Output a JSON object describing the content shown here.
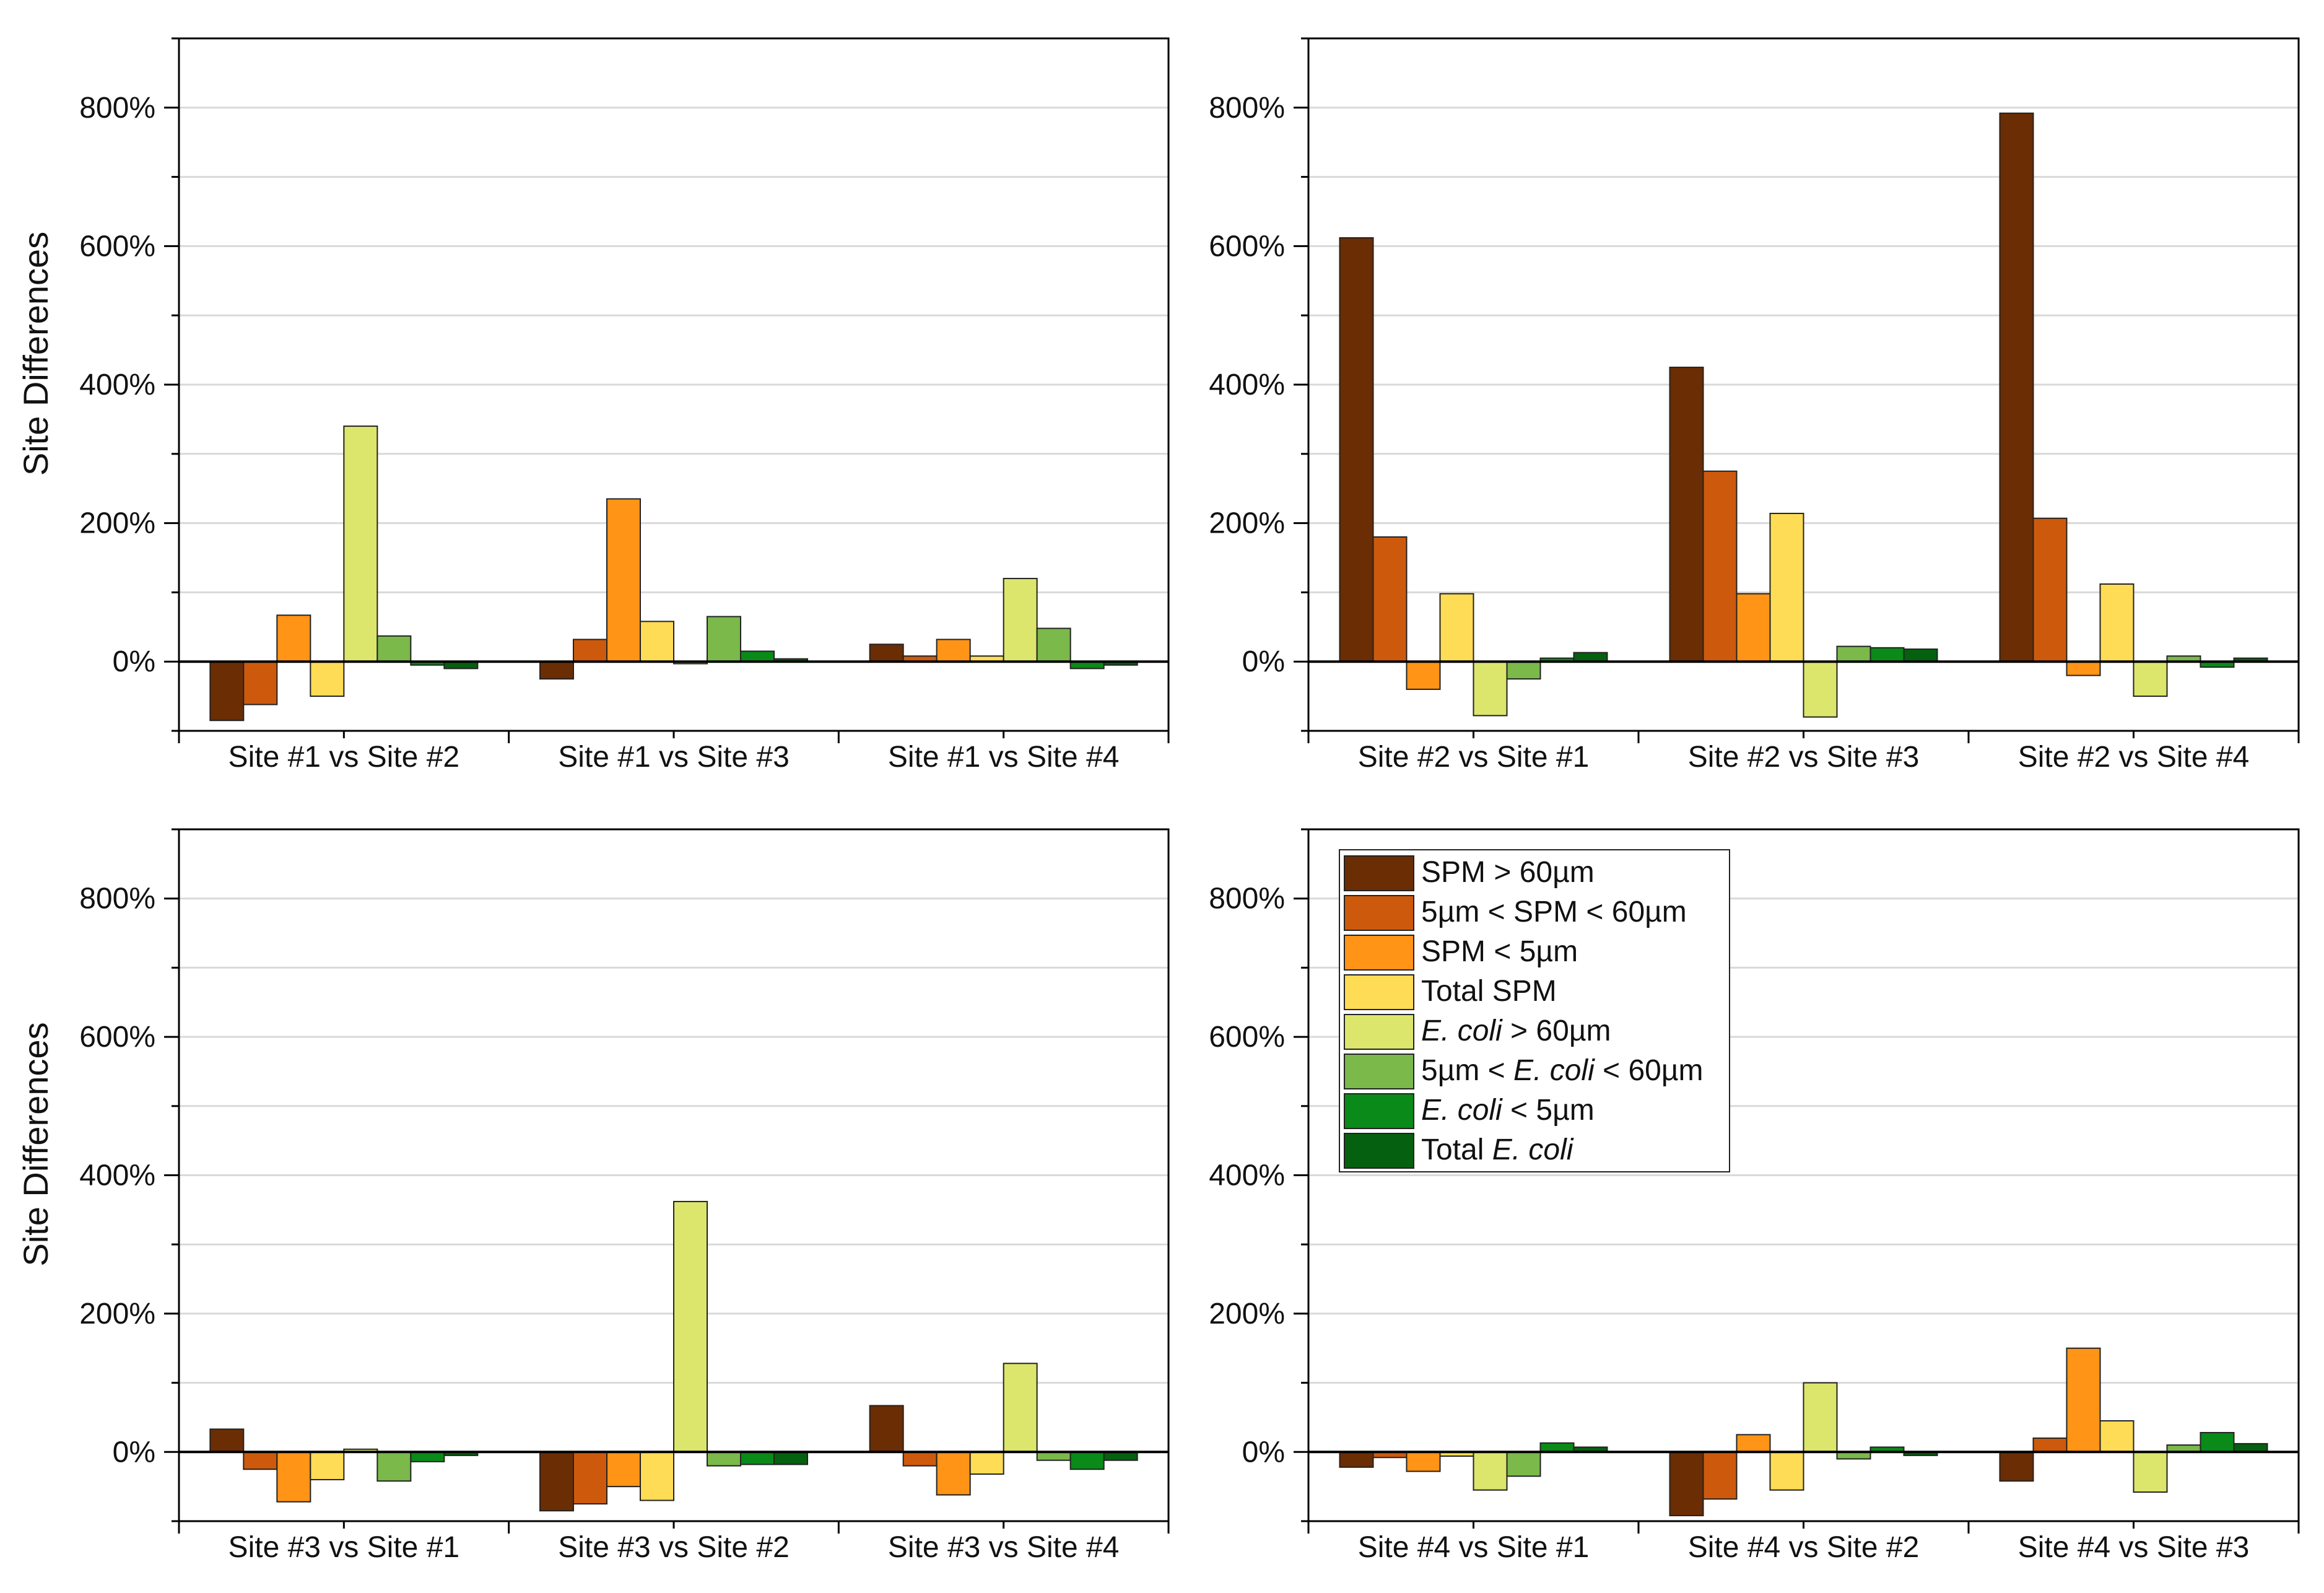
{
  "colors": {
    "grid": "#d9d9d9",
    "axis": "#000000",
    "series": [
      "#6b2d04",
      "#cd5a0c",
      "#ff9416",
      "#ffdc55",
      "#dce66c",
      "#7ab94a",
      "#0a8a18",
      "#05600f"
    ]
  },
  "legend": {
    "items": [
      {
        "label": "SPM > 60µm"
      },
      {
        "label": "5µm < SPM < 60µm"
      },
      {
        "label": "SPM < 5µm"
      },
      {
        "label": "Total SPM"
      },
      {
        "label": "E. coli > 60µm"
      },
      {
        "label": "5µm < E. coli < 60µm"
      },
      {
        "label": "E. coli < 5µm"
      },
      {
        "label": "Total E. coli"
      }
    ]
  },
  "chart_data": [
    {
      "type": "bar",
      "ylabel": "Site Differences",
      "ylim": [
        -100,
        900
      ],
      "yticks": [
        0,
        200,
        400,
        600,
        800
      ],
      "ytick_labels": [
        "0%",
        "200%",
        "400%",
        "600%",
        "800%"
      ],
      "grid": true,
      "categories": [
        "Site #1 vs Site #2",
        "Site #1 vs Site #3",
        "Site #1 vs Site #4"
      ],
      "series": [
        {
          "name": "SPM > 60µm",
          "values": [
            -85,
            -25,
            25
          ]
        },
        {
          "name": "5µm < SPM < 60µm",
          "values": [
            -62,
            32,
            8
          ]
        },
        {
          "name": "SPM < 5µm",
          "values": [
            67,
            235,
            32
          ]
        },
        {
          "name": "Total SPM",
          "values": [
            -50,
            58,
            8
          ]
        },
        {
          "name": "E. coli > 60µm",
          "values": [
            340,
            -3,
            120
          ]
        },
        {
          "name": "5µm < E. coli < 60µm",
          "values": [
            37,
            65,
            48
          ]
        },
        {
          "name": "E. coli < 5µm",
          "values": [
            -5,
            15,
            -10
          ]
        },
        {
          "name": "Total E. coli",
          "values": [
            -10,
            4,
            -5
          ]
        }
      ]
    },
    {
      "type": "bar",
      "ylabel": "",
      "ylim": [
        -100,
        900
      ],
      "yticks": [
        0,
        200,
        400,
        600,
        800
      ],
      "ytick_labels": [
        "0%",
        "200%",
        "400%",
        "600%",
        "800%"
      ],
      "grid": true,
      "categories": [
        "Site #2 vs Site #1",
        "Site #2 vs Site #3",
        "Site #2 vs Site #4"
      ],
      "series": [
        {
          "name": "SPM > 60µm",
          "values": [
            612,
            425,
            792
          ]
        },
        {
          "name": "5µm < SPM < 60µm",
          "values": [
            180,
            275,
            207
          ]
        },
        {
          "name": "SPM < 5µm",
          "values": [
            -40,
            98,
            -20
          ]
        },
        {
          "name": "Total SPM",
          "values": [
            98,
            214,
            112
          ]
        },
        {
          "name": "E. coli > 60µm",
          "values": [
            -78,
            -80,
            -50
          ]
        },
        {
          "name": "5µm < E. coli < 60µm",
          "values": [
            -25,
            22,
            8
          ]
        },
        {
          "name": "E. coli < 5µm",
          "values": [
            5,
            20,
            -8
          ]
        },
        {
          "name": "Total E. coli",
          "values": [
            13,
            18,
            5
          ]
        }
      ]
    },
    {
      "type": "bar",
      "ylabel": "Site Differences",
      "ylim": [
        -100,
        900
      ],
      "yticks": [
        0,
        200,
        400,
        600,
        800
      ],
      "ytick_labels": [
        "0%",
        "200%",
        "400%",
        "600%",
        "800%"
      ],
      "grid": true,
      "categories": [
        "Site #3 vs Site #1",
        "Site #3 vs Site #2",
        "Site #3 vs Site #4"
      ],
      "series": [
        {
          "name": "SPM > 60µm",
          "values": [
            33,
            -85,
            67
          ]
        },
        {
          "name": "5µm < SPM < 60µm",
          "values": [
            -25,
            -75,
            -20
          ]
        },
        {
          "name": "SPM < 5µm",
          "values": [
            -72,
            -50,
            -62
          ]
        },
        {
          "name": "Total SPM",
          "values": [
            -40,
            -70,
            -32
          ]
        },
        {
          "name": "E. coli > 60µm",
          "values": [
            4,
            362,
            128
          ]
        },
        {
          "name": "5µm < E. coli < 60µm",
          "values": [
            -42,
            -20,
            -12
          ]
        },
        {
          "name": "E. coli < 5µm",
          "values": [
            -14,
            -18,
            -25
          ]
        },
        {
          "name": "Total E. coli",
          "values": [
            -5,
            -18,
            -12
          ]
        }
      ]
    },
    {
      "type": "bar",
      "ylabel": "",
      "ylim": [
        -100,
        900
      ],
      "yticks": [
        0,
        200,
        400,
        600,
        800
      ],
      "ytick_labels": [
        "0%",
        "200%",
        "400%",
        "600%",
        "800%"
      ],
      "grid": true,
      "legend_position": "top-left",
      "categories": [
        "Site #4 vs Site #1",
        "Site #4 vs Site #2",
        "Site #4 vs Site #3"
      ],
      "series": [
        {
          "name": "SPM > 60µm",
          "values": [
            -22,
            -92,
            -42
          ]
        },
        {
          "name": "5µm < SPM < 60µm",
          "values": [
            -8,
            -68,
            20
          ]
        },
        {
          "name": "SPM < 5µm",
          "values": [
            -28,
            25,
            150
          ]
        },
        {
          "name": "Total SPM",
          "values": [
            -6,
            -55,
            45
          ]
        },
        {
          "name": "E. coli > 60µm",
          "values": [
            -55,
            100,
            -58
          ]
        },
        {
          "name": "5µm < E. coli < 60µm",
          "values": [
            -35,
            -10,
            10
          ]
        },
        {
          "name": "E. coli < 5µm",
          "values": [
            13,
            7,
            28
          ]
        },
        {
          "name": "Total E. coli",
          "values": [
            7,
            -5,
            12
          ]
        }
      ]
    }
  ]
}
